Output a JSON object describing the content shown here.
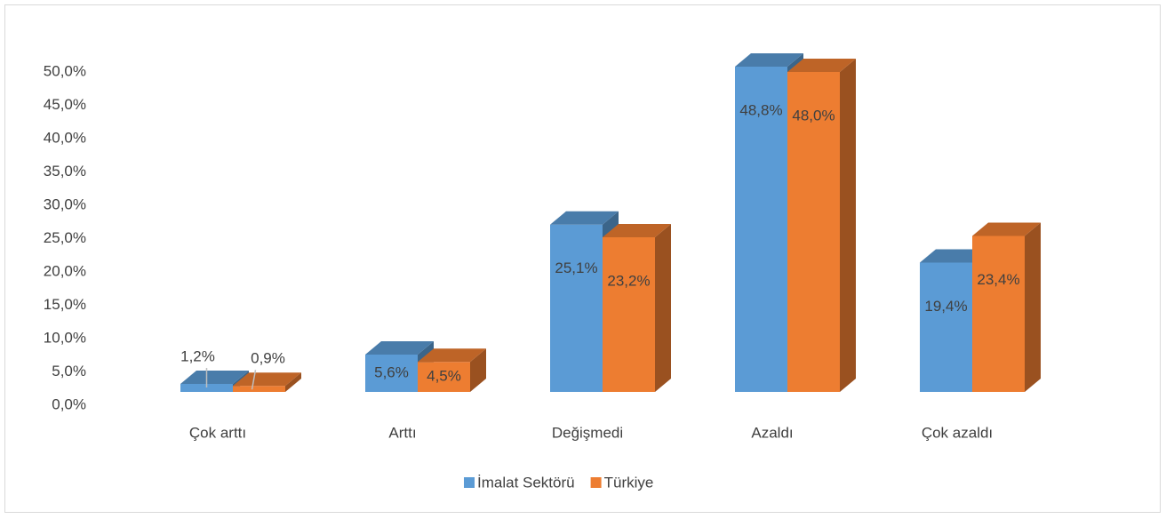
{
  "chart_data": {
    "type": "bar3d",
    "categories": [
      "Çok arttı",
      "Arttı",
      "Değişmedi",
      "Azaldı",
      "Çok azaldı"
    ],
    "series": [
      {
        "name": "İmalat Sektörü",
        "color": "#5b9bd5",
        "values": [
          1.2,
          5.6,
          25.1,
          48.8,
          19.4
        ],
        "value_labels": [
          "1,2%",
          "5,6%",
          "25,1%",
          "48,8%",
          "19,4%"
        ]
      },
      {
        "name": "Türkiye",
        "color": "#ed7d31",
        "values": [
          0.9,
          4.5,
          23.2,
          48.0,
          23.4
        ],
        "value_labels": [
          "0,9%",
          "4,5%",
          "23,2%",
          "48,0%",
          "23,4%"
        ]
      }
    ],
    "ylim": [
      0,
      50
    ],
    "yticks": [
      {
        "value": 0,
        "label": "0,0%"
      },
      {
        "value": 5,
        "label": "5,0%"
      },
      {
        "value": 10,
        "label": "10,0%"
      },
      {
        "value": 15,
        "label": "15,0%"
      },
      {
        "value": 20,
        "label": "20,0%"
      },
      {
        "value": 25,
        "label": "25,0%"
      },
      {
        "value": 30,
        "label": "30,0%"
      },
      {
        "value": 35,
        "label": "35,0%"
      },
      {
        "value": 40,
        "label": "40,0%"
      },
      {
        "value": 45,
        "label": "45,0%"
      },
      {
        "value": 50,
        "label": "50,0%"
      }
    ],
    "legend": "bottom"
  }
}
